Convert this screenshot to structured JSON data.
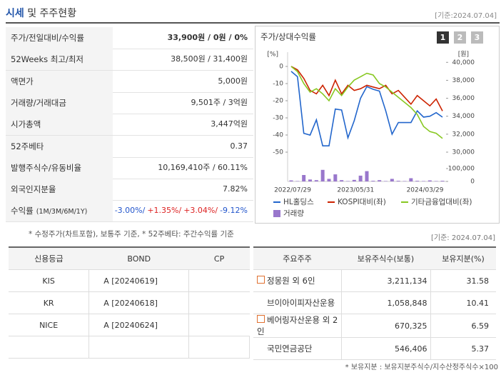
{
  "header": {
    "title": [
      "시세",
      "및 주주현황"
    ],
    "date": "[기준:2024.07.04]"
  },
  "summary": {
    "rows": [
      [
        "주가/전일대비/수익률",
        "33,900원 / 0원 / 0%"
      ],
      [
        "52Weeks 최고/최저",
        "38,500원 / 31,400원"
      ],
      [
        "액면가",
        "5,000원"
      ],
      [
        "거래량/거래대금",
        "9,501주 / 3억원"
      ],
      [
        "시가총액",
        "3,447억원"
      ],
      [
        "52주베타",
        "0.37"
      ],
      [
        "발행주식수/유동비율",
        "10,169,410주 / 60.11%"
      ],
      [
        "외국인지분율",
        "7.82%"
      ]
    ],
    "returns": {
      "label": "수익률",
      "sublabel": "(1M/3M/6M/1Y)",
      "items": [
        "-3.00%/",
        "+1.35%/",
        "+3.04%/",
        "-9.12%"
      ],
      "colors": [
        "#2255cc",
        "#dd2222",
        "#dd2222",
        "#2255cc"
      ]
    },
    "note": "* 수정주가(차트포함), 보통주 기준, * 52주베타: 주간수익률 기준"
  },
  "chart_data": {
    "type": "line",
    "title": "주가/상대수익률",
    "tabs": [
      "1",
      "2",
      "3"
    ],
    "ylabel": "[%]",
    "y2label": "[원]",
    "categories": [
      "2022/07/29",
      null,
      null,
      null,
      null,
      null,
      null,
      null,
      null,
      null,
      "2023/05/31",
      null,
      null,
      null,
      null,
      null,
      null,
      null,
      null,
      null,
      null,
      "2024/03/29",
      null,
      null,
      null
    ],
    "ylim": [
      -50,
      5
    ],
    "yticks": [
      -50,
      -40,
      -30,
      -20,
      -10,
      0
    ],
    "y2lim": [
      30000,
      40500
    ],
    "y2ticks": [
      {
        "value": 30000,
        "label": "30,000"
      },
      {
        "value": 32000,
        "label": "32,000"
      },
      {
        "value": 34000,
        "label": "34,000"
      },
      {
        "value": 36000,
        "label": "36,000"
      },
      {
        "value": 38000,
        "label": "38,000"
      },
      {
        "value": 40000,
        "label": "40,000"
      }
    ],
    "vlim": [
      0,
      100000
    ],
    "vticks": [
      0,
      {
        "value": 100000,
        "label": "100,000"
      }
    ],
    "series": [
      {
        "name": "HL홀딩스",
        "color": "#2266cc",
        "axis": "y2",
        "values": [
          39000,
          38400,
          32100,
          31900,
          33600,
          30700,
          30700,
          34800,
          34700,
          31600,
          33500,
          36000,
          37300,
          37000,
          36800,
          34600,
          32000,
          33300,
          33300,
          33300,
          34600,
          33900,
          34000,
          34400,
          33900
        ]
      },
      {
        "name": "KOSPI대비(좌)",
        "color": "#cc2200",
        "axis": "y",
        "values": [
          0,
          -2,
          -7,
          -14,
          -16,
          -11,
          -17,
          -8,
          -16,
          -11,
          -14,
          -13,
          -11,
          -12,
          -13,
          -11,
          -16,
          -14,
          -18,
          -22,
          -17,
          -20,
          -23,
          -19,
          -26
        ]
      },
      {
        "name": "기타금융업대비(좌)",
        "color": "#88c822",
        "axis": "y",
        "values": [
          0,
          -3,
          -10,
          -15,
          -13,
          -16,
          -20,
          -13,
          -17,
          -12,
          -8,
          -6,
          -4,
          -5,
          -10,
          -12,
          -15,
          -18,
          -21,
          -24,
          -28,
          -35,
          -38,
          -39,
          -42
        ]
      },
      {
        "name": "거래량",
        "color": "#9977cc",
        "axis": "volume",
        "type": "bar",
        "values": [
          8000,
          3000,
          50000,
          15000,
          10000,
          90000,
          20000,
          55000,
          10000,
          3000,
          12000,
          45000,
          80000,
          5000,
          10000,
          3000,
          20000,
          5000,
          3000,
          25000,
          5000,
          3000,
          8000,
          3000,
          5000
        ]
      }
    ]
  },
  "credit": {
    "headers": [
      "신용등급",
      "BOND",
      "CP"
    ],
    "rows": [
      [
        "KIS",
        "A  [20240619]"
      ],
      [
        "KR",
        "A  [20240618]"
      ],
      [
        "NICE",
        "A  [20240624]"
      ]
    ]
  },
  "holders": {
    "date": "[기준: 2024.07.04]",
    "headers": [
      "주요주주",
      "보유주식수(보통)",
      "보유지분(%)"
    ],
    "rows": [
      {
        "name": "정몽원 외 6인",
        "shares": "3,211,134",
        "pct": "31.58",
        "expand": true
      },
      {
        "name": "브이아이피자산운용",
        "shares": "1,058,848",
        "pct": "10.41",
        "expand": false
      },
      {
        "name": "베어링자산운용 외 2인",
        "shares": "670,325",
        "pct": "6.59",
        "expand": true
      },
      {
        "name": "국민연금공단",
        "shares": "546,406",
        "pct": "5.37",
        "expand": false
      }
    ],
    "note": "* 보유지분 : 보유지분주식수/지수산정주식수×100"
  }
}
